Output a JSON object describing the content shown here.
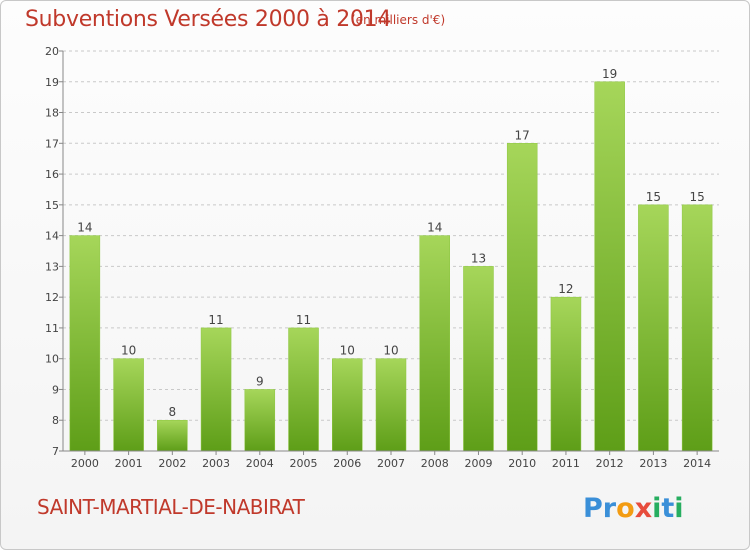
{
  "header": {
    "title": "Subventions Versées 2000 à 2014",
    "unit": "(en milliers d'€)"
  },
  "footer": {
    "commune": "SAINT-MARTIAL-DE-NABIRAT",
    "brand": "Proxiti"
  },
  "colors": {
    "title": "#c0392b",
    "bar_light": "#a6d65a",
    "bar_dark": "#5e9e18"
  },
  "chart_data": {
    "type": "bar",
    "title": "Subventions Versées 2000 à 2014",
    "subtitle": "(en milliers d'€)",
    "categories": [
      "2000",
      "2001",
      "2002",
      "2003",
      "2004",
      "2005",
      "2006",
      "2007",
      "2008",
      "2009",
      "2010",
      "2011",
      "2012",
      "2013",
      "2014"
    ],
    "values": [
      14,
      10,
      8,
      11,
      9,
      11,
      10,
      10,
      14,
      13,
      17,
      12,
      19,
      15,
      15
    ],
    "ylim": [
      7,
      20
    ],
    "yticks": [
      7,
      8,
      9,
      10,
      11,
      12,
      13,
      14,
      15,
      16,
      17,
      18,
      19,
      20
    ],
    "grid": "horizontal dashed",
    "legend": "none",
    "xlabel": "",
    "ylabel": ""
  }
}
